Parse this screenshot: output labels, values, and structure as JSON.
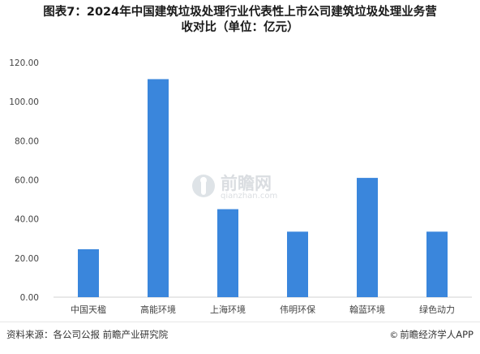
{
  "title": {
    "line1": "图表7：2024年中国建筑垃圾处理行业代表性上市公司建筑垃圾处理业务营",
    "line2": "收对比（单位：亿元）"
  },
  "watermark": {
    "cn": "前瞻网",
    "en": "qianzhan.com"
  },
  "footer": {
    "source": "资料来源：各公司公报  前瞻产业研究院",
    "brand": "前瞻经济学人APP",
    "brand_icon": "copyright-icon"
  },
  "colors": {
    "bar": "#3a86dc",
    "axis": "#d0d0d0",
    "tick_text": "#444444"
  },
  "chart_data": {
    "type": "bar",
    "title": "图表7：2024年中国建筑垃圾处理行业代表性上市公司建筑垃圾处理业务营收对比（单位：亿元）",
    "xlabel": "",
    "ylabel": "",
    "categories": [
      "中国天楹",
      "高能环境",
      "上海环境",
      "伟明环保",
      "翰蓝环境",
      "绿色动力"
    ],
    "values": [
      24.5,
      111.5,
      45.0,
      33.5,
      61.0,
      33.5
    ],
    "ylim": [
      0,
      120
    ],
    "yticks": [
      "0.00",
      "20.00",
      "40.00",
      "60.00",
      "80.00",
      "100.00",
      "120.00"
    ],
    "grid": false,
    "legend": "none"
  }
}
